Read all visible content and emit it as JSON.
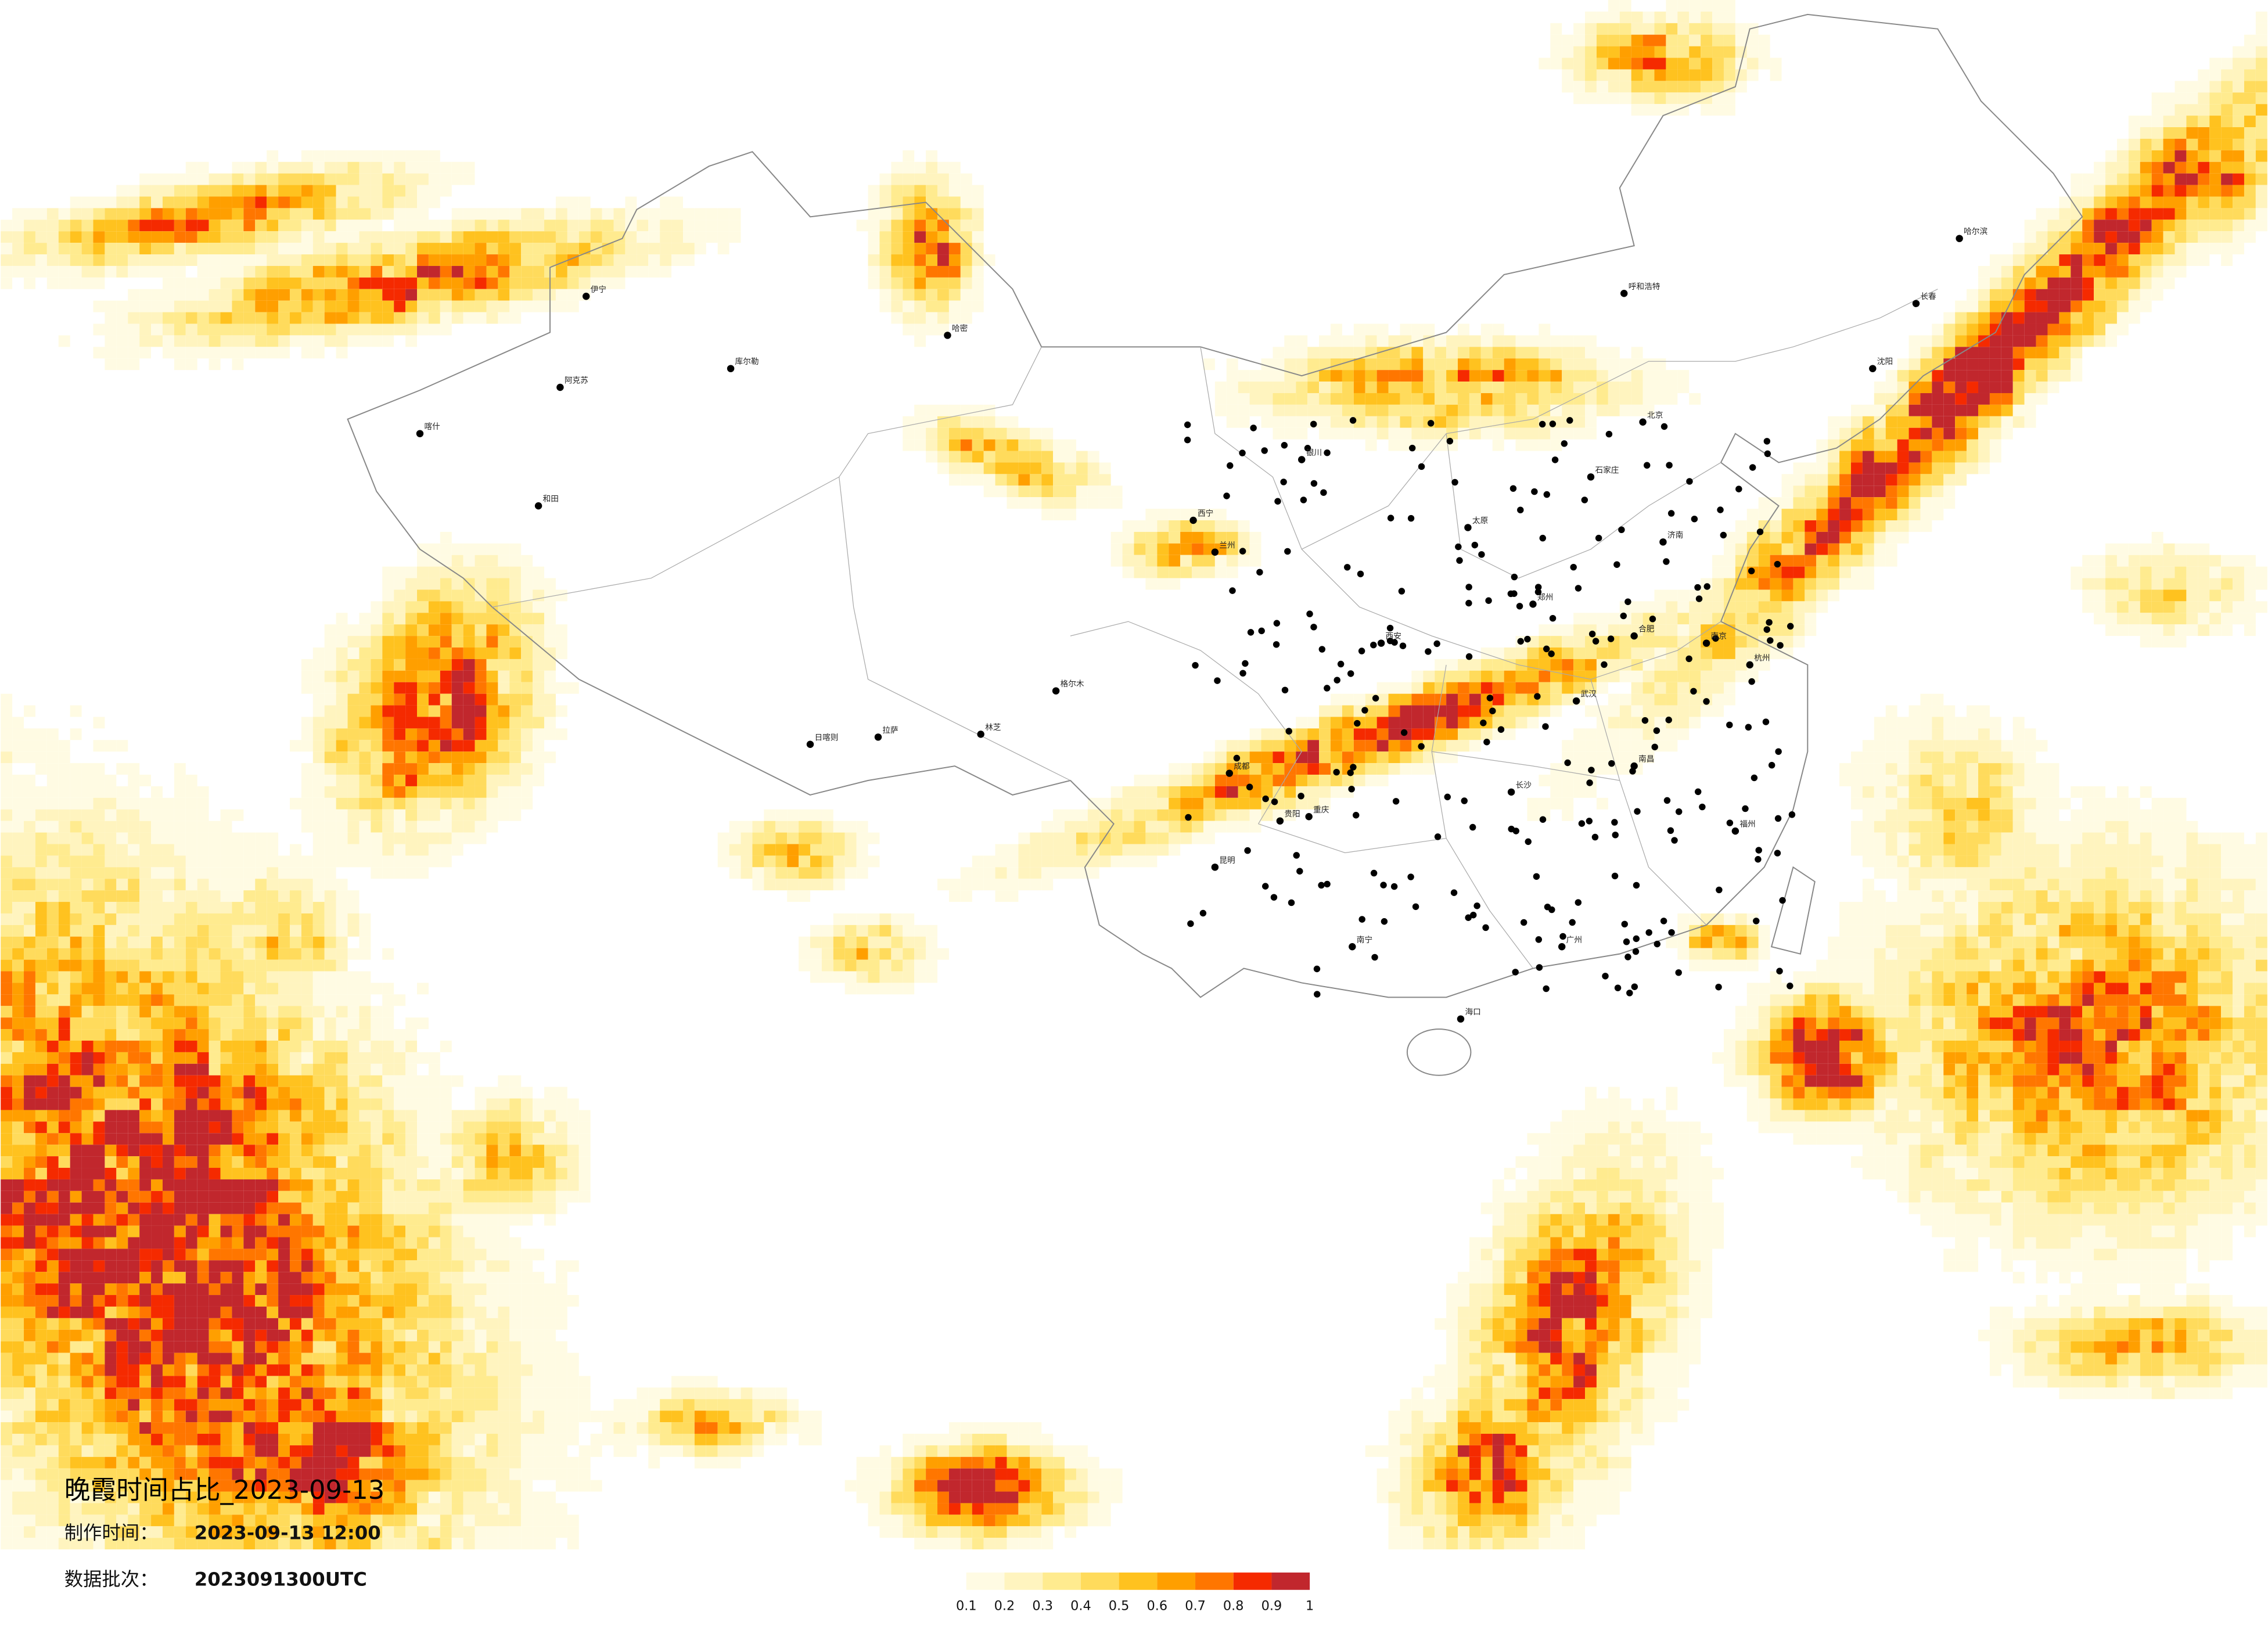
{
  "title": "晚霞时间占比_2023-09-13",
  "made_label": "制作时间：",
  "made_time": "2023-09-13 12:00",
  "batch_label": "数据批次：",
  "batch": "2023091300UTC",
  "legend": {
    "colors": [
      "#fffbe3",
      "#fff4bf",
      "#ffeb8f",
      "#ffdb5c",
      "#ffc21f",
      "#ff9f00",
      "#ff7600",
      "#f52a00",
      "#c1272d"
    ],
    "ticks": [
      0.1,
      0.2,
      0.3,
      0.4,
      0.5,
      0.6,
      0.7,
      0.8,
      0.9,
      1
    ]
  },
  "cities": [
    "伊宁",
    "阿克苏",
    "喀什",
    "和田",
    "库尔勒",
    "哈密",
    "格尔木",
    "日喀则",
    "拉萨",
    "林芝",
    "西宁",
    "兰州",
    "银川",
    "呼和浩特",
    "北京",
    "石家庄",
    "太原",
    "西安",
    "成都",
    "重庆",
    "昆明",
    "贵阳",
    "长沙",
    "武汉",
    "南昌",
    "杭州",
    "福州",
    "广州",
    "南宁",
    "海口",
    "哈尔滨",
    "长春",
    "沈阳",
    "济南",
    "郑州",
    "合肥",
    "南京"
  ]
}
